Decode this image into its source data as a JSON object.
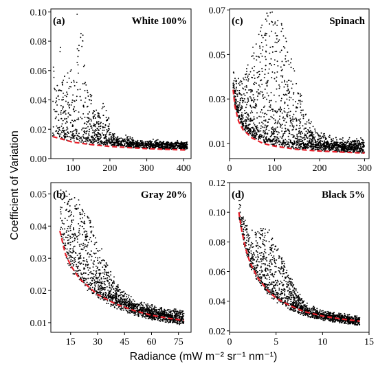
{
  "figure": {
    "xlabel": "Radiance (mW m⁻² sr⁻¹ nm⁻¹)",
    "ylabel": "Coefficient of Variation"
  },
  "chart_data": [
    {
      "id": "a",
      "type": "scatter",
      "letter": "(a)",
      "title": "White 100%",
      "xlim": [
        40,
        420
      ],
      "ylim": [
        0,
        0.102
      ],
      "xticks": [
        100,
        200,
        300,
        400
      ],
      "yticks": [
        0.0,
        0.02,
        0.04,
        0.06,
        0.08,
        0.1
      ],
      "ytick_decimals": 2,
      "fit_curve": {
        "style": "dashed",
        "color": "#e8202a",
        "points": [
          [
            45,
            0.015
          ],
          [
            100,
            0.0112
          ],
          [
            150,
            0.0095
          ],
          [
            200,
            0.0083
          ],
          [
            250,
            0.0075
          ],
          [
            300,
            0.0068
          ],
          [
            350,
            0.0063
          ],
          [
            410,
            0.0058
          ]
        ]
      },
      "scatter_color": "#000000"
    },
    {
      "id": "c",
      "type": "scatter",
      "letter": "(c)",
      "title": "Spinach",
      "xlim": [
        0,
        310
      ],
      "ylim": [
        0.0032,
        0.0705
      ],
      "xticks": [
        0,
        100,
        200,
        300
      ],
      "yticks": [
        0.01,
        0.03,
        0.05,
        0.07
      ],
      "ytick_decimals": 2,
      "fit_curve": {
        "style": "dashed",
        "color": "#e8202a",
        "points": [
          [
            8,
            0.0342
          ],
          [
            12,
            0.0265
          ],
          [
            20,
            0.02
          ],
          [
            30,
            0.0162
          ],
          [
            50,
            0.0125
          ],
          [
            75,
            0.01
          ],
          [
            100,
            0.0088
          ],
          [
            150,
            0.0073
          ],
          [
            200,
            0.0066
          ],
          [
            250,
            0.0061
          ],
          [
            300,
            0.0057
          ]
        ]
      },
      "scatter_color": "#000000"
    },
    {
      "id": "b",
      "type": "scatter",
      "letter": "(b)",
      "title": "Gray 20%",
      "xlim": [
        4,
        82
      ],
      "ylim": [
        0.007,
        0.0535
      ],
      "xticks": [
        15,
        30,
        45,
        60,
        75
      ],
      "yticks": [
        0.01,
        0.02,
        0.03,
        0.04,
        0.05
      ],
      "ytick_decimals": 2,
      "fit_curve": {
        "style": "dashed",
        "color": "#e8202a",
        "points": [
          [
            9,
            0.0385
          ],
          [
            12,
            0.0315
          ],
          [
            15,
            0.0278
          ],
          [
            20,
            0.0236
          ],
          [
            30,
            0.0187
          ],
          [
            40,
            0.0158
          ],
          [
            50,
            0.0138
          ],
          [
            60,
            0.0123
          ],
          [
            70,
            0.0113
          ],
          [
            78,
            0.0107
          ]
        ]
      },
      "scatter_color": "#000000"
    },
    {
      "id": "d",
      "type": "scatter",
      "letter": "(d)",
      "title": "Black 5%",
      "xlim": [
        0,
        15
      ],
      "ylim": [
        0.019,
        0.12
      ],
      "xticks": [
        0,
        5,
        10,
        15
      ],
      "yticks": [
        0.02,
        0.04,
        0.06,
        0.08,
        0.1,
        0.12
      ],
      "ytick_decimals": 2,
      "fit_curve": {
        "style": "dashed",
        "color": "#e8202a",
        "points": [
          [
            1.0,
            0.1
          ],
          [
            1.3,
            0.088
          ],
          [
            1.7,
            0.076
          ],
          [
            2.2,
            0.066
          ],
          [
            3.0,
            0.056
          ],
          [
            4.0,
            0.048
          ],
          [
            5.0,
            0.042
          ],
          [
            6.5,
            0.037
          ],
          [
            8.0,
            0.033
          ],
          [
            10.0,
            0.03
          ],
          [
            12.0,
            0.028
          ],
          [
            14.0,
            0.0265
          ]
        ]
      },
      "scatter_color": "#000000"
    }
  ]
}
